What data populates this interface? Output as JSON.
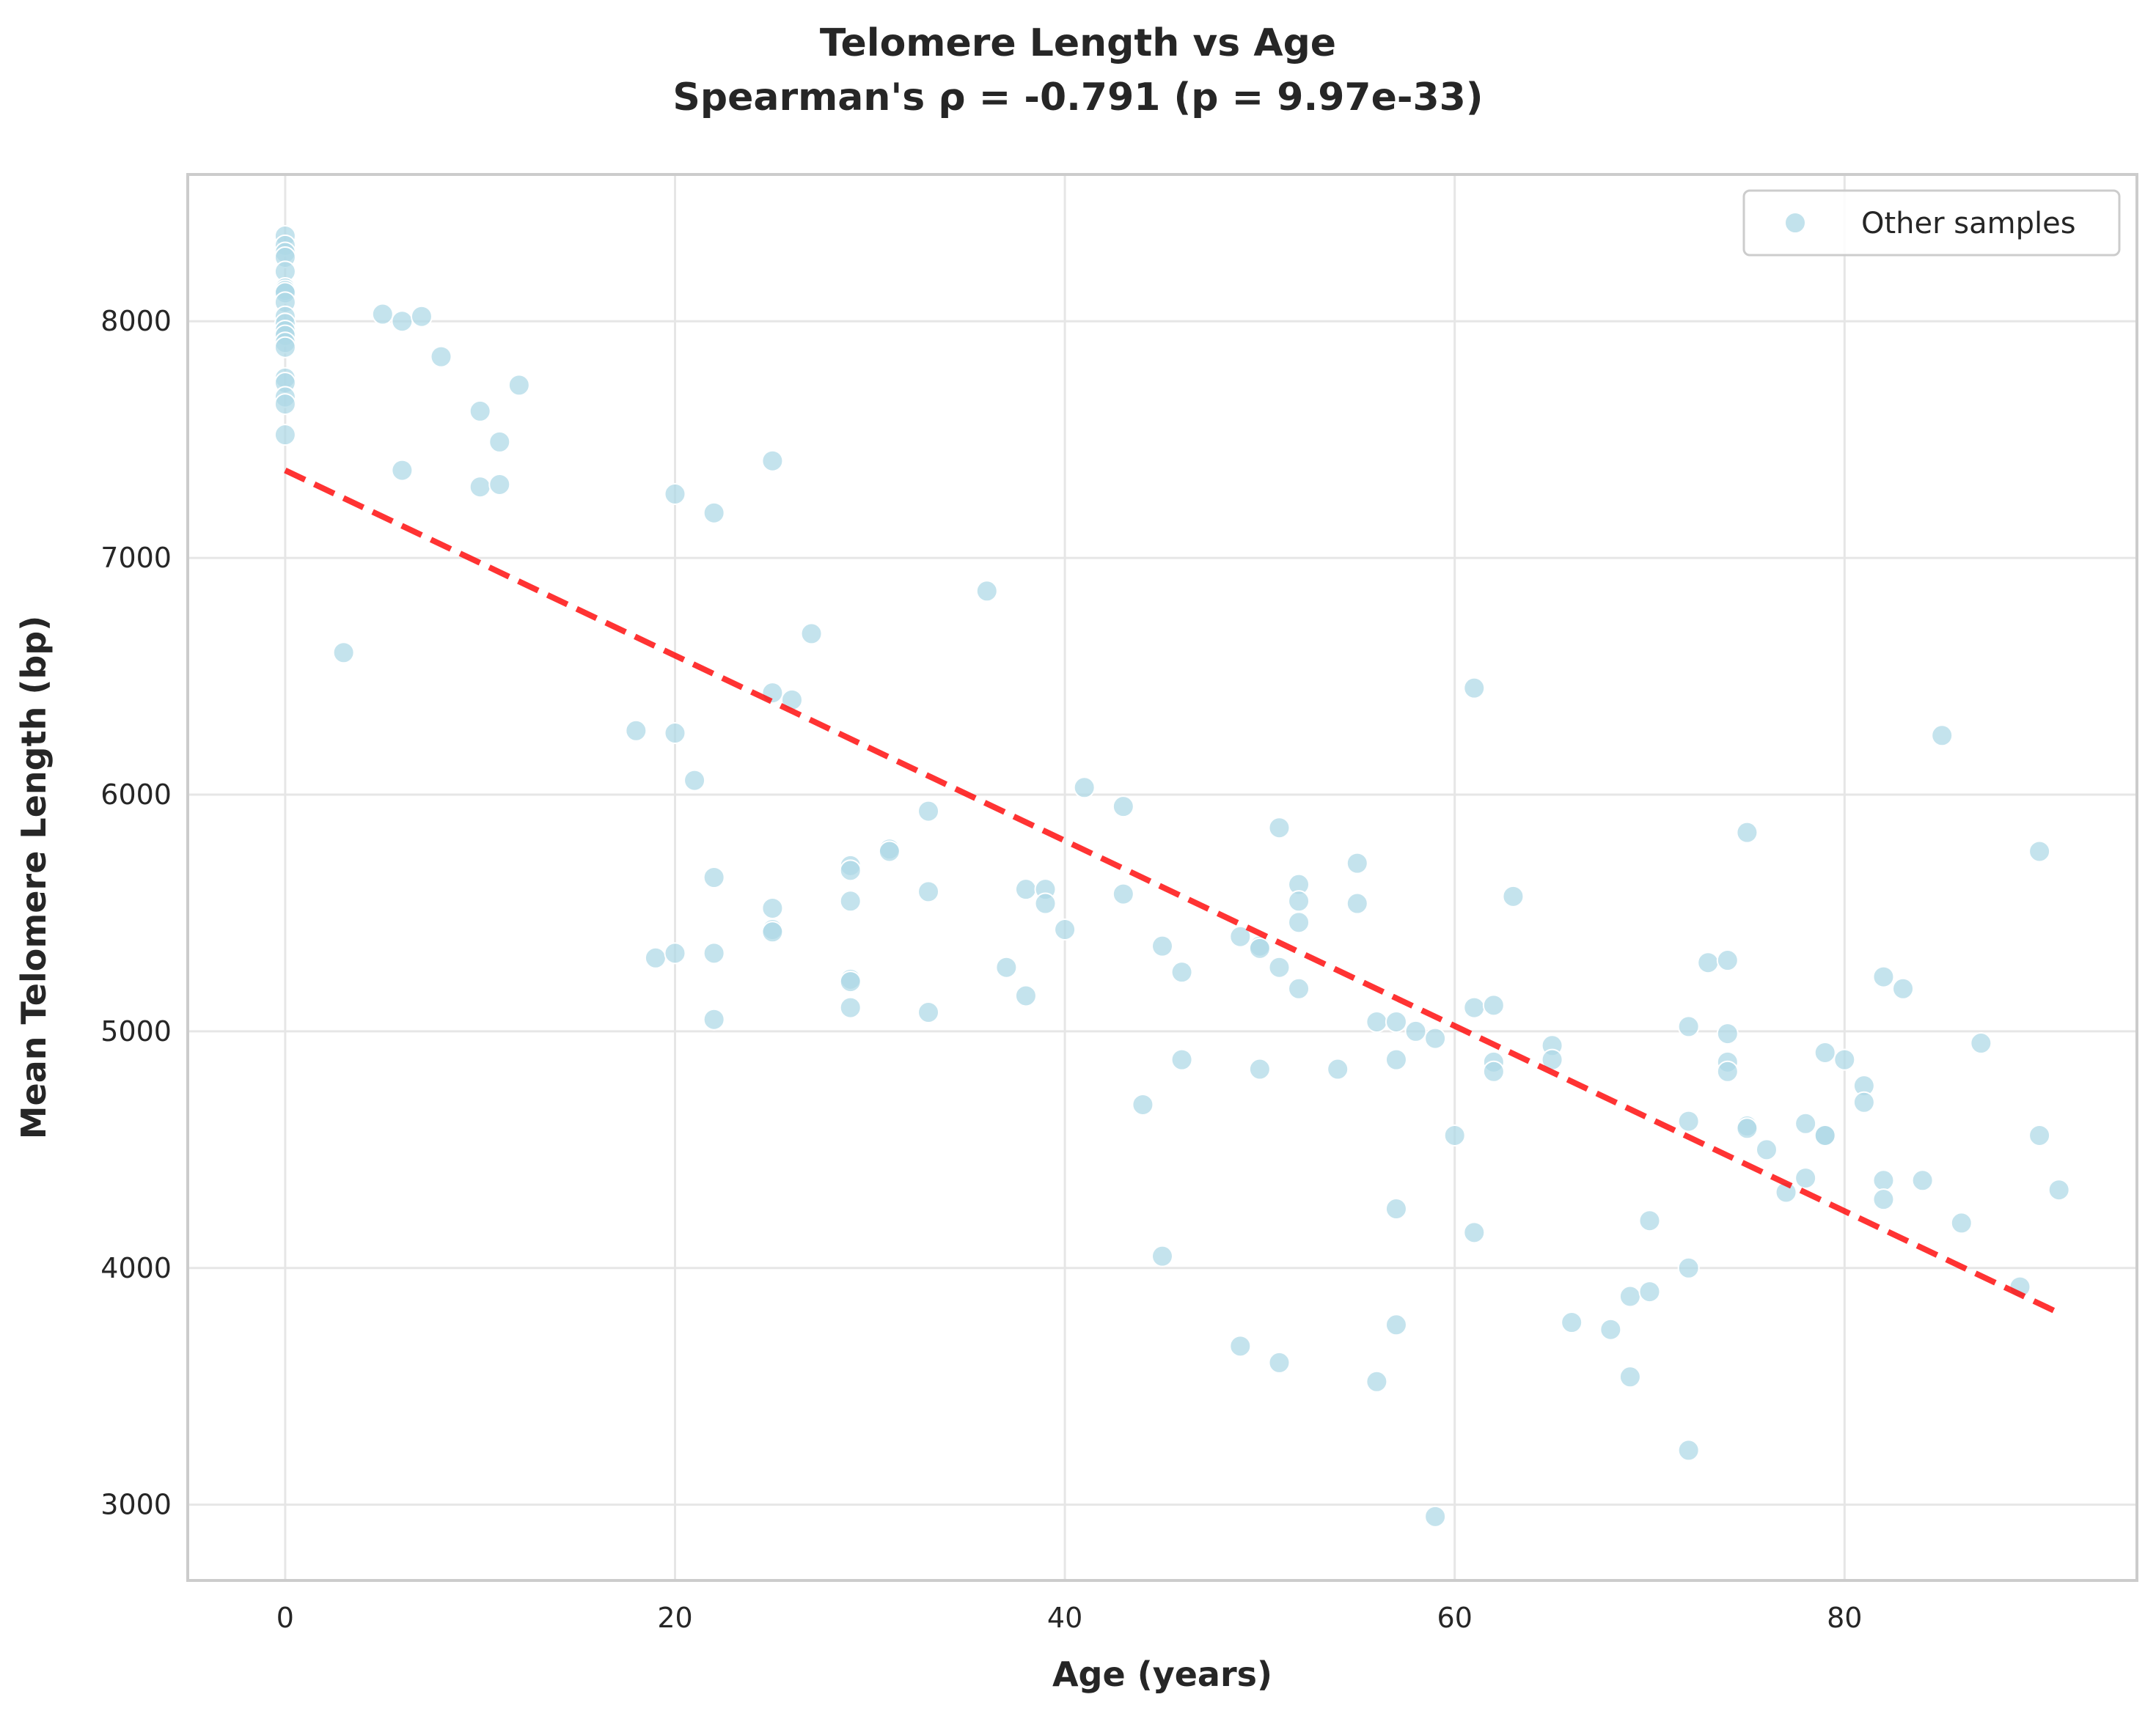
{
  "chart_data": {
    "type": "scatter",
    "title": "Telomere Length vs Age",
    "subtitle": "Spearman's ρ = -0.791 (p = 9.97e-33)",
    "xlabel": "Age (years)",
    "ylabel": "Mean Telomere Length (bp)",
    "xlim": [
      -5,
      95
    ],
    "ylim": [
      2680,
      8620
    ],
    "x_ticks": [
      0,
      20,
      40,
      60,
      80
    ],
    "y_ticks": [
      3000,
      4000,
      5000,
      6000,
      7000,
      8000
    ],
    "grid": true,
    "legend_position": "top-right",
    "colors": {
      "points": "#add8e6",
      "trend": "#ff0000",
      "grid": "#e6e6e6",
      "spine": "#cccccc"
    },
    "series": [
      {
        "name": "Other samples",
        "points": [
          [
            0,
            8360
          ],
          [
            0,
            8320
          ],
          [
            0,
            8290
          ],
          [
            0,
            8270
          ],
          [
            0,
            8210
          ],
          [
            0,
            8140
          ],
          [
            0,
            8130
          ],
          [
            0,
            8120
          ],
          [
            0,
            8080
          ],
          [
            0,
            8020
          ],
          [
            0,
            7990
          ],
          [
            0,
            7960
          ],
          [
            0,
            7940
          ],
          [
            0,
            7910
          ],
          [
            0,
            7890
          ],
          [
            0,
            7760
          ],
          [
            0,
            7740
          ],
          [
            0,
            7680
          ],
          [
            0,
            7650
          ],
          [
            0,
            7520
          ],
          [
            3,
            6600
          ],
          [
            5,
            8030
          ],
          [
            6,
            8000
          ],
          [
            6,
            7370
          ],
          [
            7,
            8020
          ],
          [
            8,
            7850
          ],
          [
            10,
            7620
          ],
          [
            10,
            7300
          ],
          [
            11,
            7490
          ],
          [
            11,
            7310
          ],
          [
            12,
            7730
          ],
          [
            18,
            6270
          ],
          [
            19,
            5310
          ],
          [
            20,
            7270
          ],
          [
            20,
            6260
          ],
          [
            20,
            5330
          ],
          [
            21,
            6060
          ],
          [
            22,
            7190
          ],
          [
            22,
            5650
          ],
          [
            22,
            5330
          ],
          [
            22,
            5050
          ],
          [
            25,
            7410
          ],
          [
            25,
            6430
          ],
          [
            25,
            5520
          ],
          [
            25,
            5430
          ],
          [
            25,
            5420
          ],
          [
            26,
            6400
          ],
          [
            27,
            6680
          ],
          [
            29,
            5700
          ],
          [
            29,
            5680
          ],
          [
            29,
            5550
          ],
          [
            29,
            5220
          ],
          [
            29,
            5210
          ],
          [
            29,
            5100
          ],
          [
            31,
            5770
          ],
          [
            31,
            5760
          ],
          [
            33,
            5930
          ],
          [
            33,
            5590
          ],
          [
            33,
            5080
          ],
          [
            36,
            6860
          ],
          [
            37,
            5270
          ],
          [
            38,
            5600
          ],
          [
            38,
            5150
          ],
          [
            39,
            5600
          ],
          [
            39,
            5540
          ],
          [
            40,
            5430
          ],
          [
            41,
            6030
          ],
          [
            43,
            5950
          ],
          [
            43,
            5580
          ],
          [
            44,
            4690
          ],
          [
            45,
            5360
          ],
          [
            45,
            4050
          ],
          [
            46,
            5250
          ],
          [
            46,
            4880
          ],
          [
            49,
            5400
          ],
          [
            49,
            3670
          ],
          [
            50,
            5360
          ],
          [
            50,
            5350
          ],
          [
            50,
            4840
          ],
          [
            51,
            5860
          ],
          [
            51,
            5270
          ],
          [
            51,
            3600
          ],
          [
            52,
            5620
          ],
          [
            52,
            5550
          ],
          [
            52,
            5460
          ],
          [
            52,
            5180
          ],
          [
            54,
            4840
          ],
          [
            55,
            5710
          ],
          [
            55,
            5540
          ],
          [
            56,
            5040
          ],
          [
            56,
            3520
          ],
          [
            57,
            5040
          ],
          [
            57,
            4880
          ],
          [
            57,
            4250
          ],
          [
            57,
            3760
          ],
          [
            58,
            5000
          ],
          [
            59,
            4970
          ],
          [
            59,
            2950
          ],
          [
            60,
            4560
          ],
          [
            61,
            6450
          ],
          [
            61,
            5100
          ],
          [
            61,
            4150
          ],
          [
            62,
            5110
          ],
          [
            62,
            4870
          ],
          [
            62,
            4830
          ],
          [
            63,
            5570
          ],
          [
            65,
            4940
          ],
          [
            65,
            4880
          ],
          [
            66,
            3770
          ],
          [
            68,
            3740
          ],
          [
            69,
            3880
          ],
          [
            69,
            3540
          ],
          [
            70,
            4200
          ],
          [
            70,
            3900
          ],
          [
            72,
            5020
          ],
          [
            72,
            4620
          ],
          [
            72,
            4000
          ],
          [
            72,
            3230
          ],
          [
            73,
            5290
          ],
          [
            74,
            5300
          ],
          [
            74,
            4990
          ],
          [
            74,
            4870
          ],
          [
            74,
            4830
          ],
          [
            75,
            5840
          ],
          [
            75,
            4600
          ],
          [
            75,
            4590
          ],
          [
            76,
            4500
          ],
          [
            77,
            4320
          ],
          [
            78,
            4610
          ],
          [
            78,
            4380
          ],
          [
            79,
            4910
          ],
          [
            79,
            4560
          ],
          [
            79,
            4560
          ],
          [
            80,
            4880
          ],
          [
            81,
            4770
          ],
          [
            81,
            4700
          ],
          [
            82,
            5230
          ],
          [
            82,
            4370
          ],
          [
            82,
            4290
          ],
          [
            83,
            5180
          ],
          [
            84,
            4370
          ],
          [
            85,
            6250
          ],
          [
            86,
            4190
          ],
          [
            87,
            4950
          ],
          [
            89,
            3920
          ],
          [
            90,
            5760
          ],
          [
            90,
            4560
          ],
          [
            91,
            4330
          ]
        ]
      }
    ],
    "trend_line": {
      "x": [
        0,
        91
      ],
      "y": [
        7370,
        3810
      ]
    }
  }
}
